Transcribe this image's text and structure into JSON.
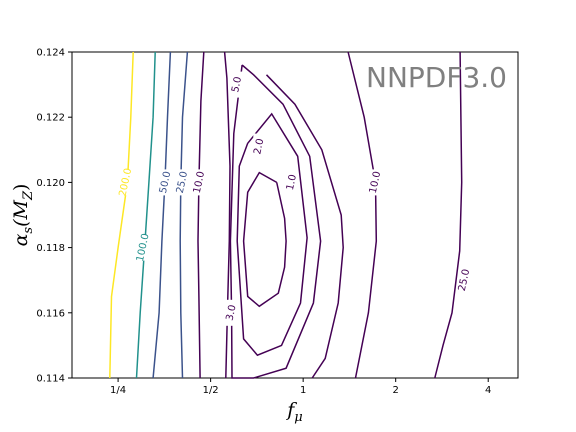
{
  "chart_data": {
    "type": "contour",
    "watermark": "NNPDF3.0",
    "xlabel": "f",
    "xlabel_sub": "μ",
    "ylabel": "α",
    "ylabel_sub": "s",
    "ylabel_arg": "(M",
    "ylabel_arg_sub": "Z",
    "ylabel_close": ")",
    "xscale": "log2",
    "xlim": [
      0.177,
      5.0
    ],
    "ylim": [
      0.114,
      0.124
    ],
    "xticks": [
      {
        "value": 0.25,
        "label": "1/4"
      },
      {
        "value": 0.5,
        "label": "1/2"
      },
      {
        "value": 1,
        "label": "1"
      },
      {
        "value": 2,
        "label": "2"
      },
      {
        "value": 4,
        "label": "4"
      }
    ],
    "yticks": [
      {
        "value": 0.114,
        "label": "0.114"
      },
      {
        "value": 0.116,
        "label": "0.116"
      },
      {
        "value": 0.118,
        "label": "0.118"
      },
      {
        "value": 0.12,
        "label": "0.120"
      },
      {
        "value": 0.122,
        "label": "0.122"
      },
      {
        "value": 0.124,
        "label": "0.124"
      }
    ],
    "contours": [
      {
        "level": "1.0",
        "color": "#440154",
        "label_at": [
          0.92,
          0.12
        ],
        "points": [
          [
            0.82,
            0.12
          ],
          [
            0.87,
            0.1189
          ],
          [
            0.88,
            0.1182
          ],
          [
            0.87,
            0.1174
          ],
          [
            0.83,
            0.1166
          ],
          [
            0.72,
            0.1162
          ],
          [
            0.66,
            0.1165
          ],
          [
            0.64,
            0.1182
          ],
          [
            0.66,
            0.1197
          ],
          [
            0.72,
            0.1203
          ],
          [
            0.82,
            0.12
          ]
        ]
      },
      {
        "level": "2.0",
        "color": "#440154",
        "label_at": [
          0.72,
          0.1211
        ],
        "points": [
          [
            0.66,
            0.1212
          ],
          [
            0.79,
            0.1221
          ],
          [
            0.96,
            0.1208
          ],
          [
            1.03,
            0.1183
          ],
          [
            0.98,
            0.1163
          ],
          [
            0.85,
            0.115
          ],
          [
            0.71,
            0.1147
          ],
          [
            0.64,
            0.1152
          ],
          [
            0.61,
            0.1182
          ],
          [
            0.62,
            0.1205
          ],
          [
            0.66,
            0.1212
          ]
        ]
      },
      {
        "level": "3.0",
        "color": "#440154",
        "label_at": [
          0.585,
          0.116
        ],
        "points": [
          [
            0.633,
            0.1236
          ],
          [
            0.69,
            0.1233
          ],
          [
            0.86,
            0.1224
          ],
          [
            1.05,
            0.1208
          ],
          [
            1.14,
            0.1182
          ],
          [
            1.08,
            0.1163
          ],
          [
            0.88,
            0.1143
          ],
          [
            0.69,
            0.114
          ],
          [
            0.587,
            0.114
          ],
          [
            0.585,
            0.116
          ],
          [
            0.58,
            0.1182
          ],
          [
            0.595,
            0.1215
          ],
          [
            0.633,
            0.1236
          ]
        ]
      },
      {
        "level": "5.0",
        "color": "#440154",
        "label_at": [
          0.61,
          0.123
        ],
        "points": [
          [
            0.555,
            0.124
          ],
          [
            0.565,
            0.1232
          ],
          [
            0.578,
            0.1205
          ],
          [
            0.575,
            0.1182
          ],
          [
            0.567,
            0.116
          ],
          [
            0.56,
            0.114
          ]
        ]
      },
      {
        "level": "5.0",
        "color": "#440154",
        "label_at": null,
        "points": [
          [
            0.76,
            0.1233
          ],
          [
            0.94,
            0.1224
          ],
          [
            1.15,
            0.121
          ],
          [
            1.33,
            0.119
          ],
          [
            1.35,
            0.118
          ],
          [
            1.3,
            0.1163
          ],
          [
            1.18,
            0.1146
          ],
          [
            1.07,
            0.114
          ]
        ]
      },
      {
        "level": "10.0",
        "color": "#440154",
        "label_at": [
          0.46,
          0.12
        ],
        "points": [
          [
            0.475,
            0.124
          ],
          [
            0.465,
            0.1225
          ],
          [
            0.458,
            0.12
          ],
          [
            0.455,
            0.1182
          ],
          [
            0.458,
            0.1165
          ],
          [
            0.462,
            0.114
          ]
        ]
      },
      {
        "level": "10.0",
        "color": "#440154",
        "label_at": [
          1.72,
          0.12
        ],
        "points": [
          [
            1.4,
            0.124
          ],
          [
            1.58,
            0.122
          ],
          [
            1.72,
            0.12
          ],
          [
            1.73,
            0.1182
          ],
          [
            1.63,
            0.116
          ],
          [
            1.48,
            0.114
          ]
        ]
      },
      {
        "level": "25.0",
        "color": "#3b528b",
        "label_at": [
          0.405,
          0.12
        ],
        "points": [
          [
            0.42,
            0.124
          ],
          [
            0.405,
            0.122
          ],
          [
            0.4,
            0.12
          ],
          [
            0.398,
            0.1182
          ],
          [
            0.4,
            0.116
          ],
          [
            0.405,
            0.114
          ]
        ]
      },
      {
        "level": "25.0",
        "color": "#440154",
        "label_at": [
          3.35,
          0.117
        ],
        "points": [
          [
            3.24,
            0.124
          ],
          [
            3.26,
            0.122
          ],
          [
            3.28,
            0.12
          ],
          [
            3.23,
            0.1179
          ],
          [
            3.05,
            0.116
          ],
          [
            2.85,
            0.115
          ],
          [
            2.68,
            0.114
          ]
        ]
      },
      {
        "level": "50.0",
        "color": "#3b528b",
        "label_at": [
          0.357,
          0.12
        ],
        "points": [
          [
            0.37,
            0.124
          ],
          [
            0.362,
            0.122
          ],
          [
            0.355,
            0.12
          ],
          [
            0.347,
            0.1182
          ],
          [
            0.34,
            0.116
          ],
          [
            0.325,
            0.114
          ]
        ]
      },
      {
        "level": "100.0",
        "color": "#21918c",
        "label_at": [
          0.302,
          0.118
        ],
        "points": [
          [
            0.33,
            0.124
          ],
          [
            0.325,
            0.122
          ],
          [
            0.315,
            0.12
          ],
          [
            0.305,
            0.118
          ],
          [
            0.295,
            0.116
          ],
          [
            0.287,
            0.114
          ]
        ]
      },
      {
        "level": "200.0",
        "color": "#fde725",
        "label_at": [
          0.265,
          0.12
        ],
        "points": [
          [
            0.28,
            0.124
          ],
          [
            0.275,
            0.122
          ],
          [
            0.268,
            0.12
          ],
          [
            0.25,
            0.118
          ],
          [
            0.238,
            0.1165
          ],
          [
            0.235,
            0.114
          ]
        ]
      }
    ]
  }
}
